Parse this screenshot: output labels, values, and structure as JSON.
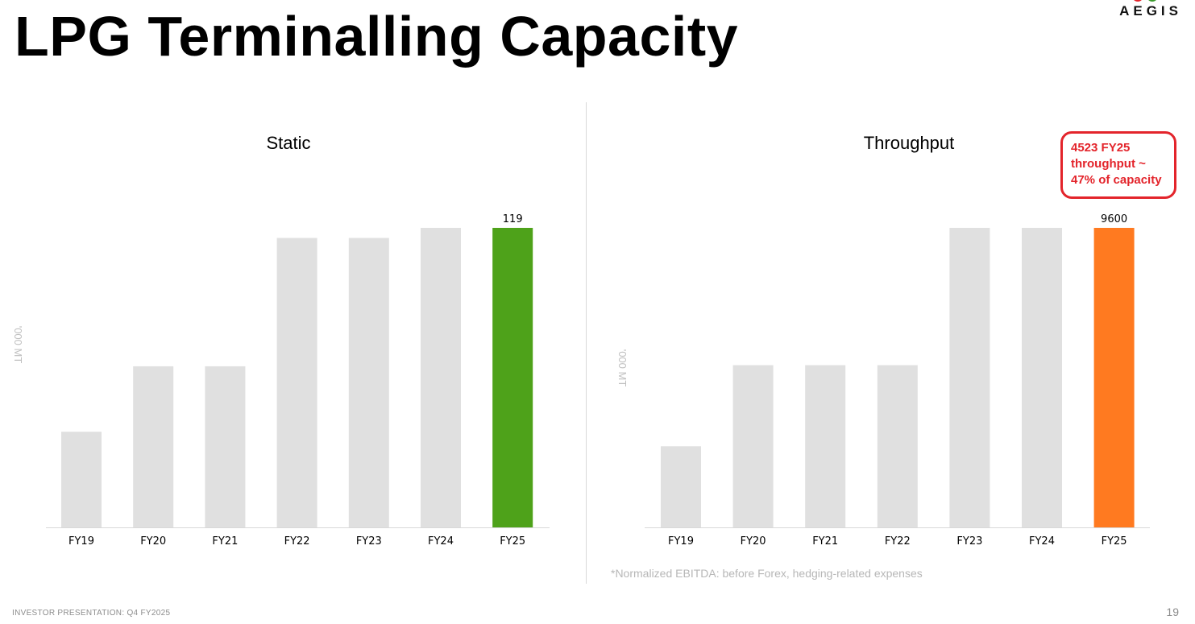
{
  "page": {
    "title": "LPG Terminalling Capacity",
    "logo_text": "AEGIS",
    "footnote": "*Normalized EBITDA: before Forex, hedging-related expenses",
    "footer_text": "INVESTOR PRESENTATION: Q4 FY2025",
    "page_number": "19"
  },
  "colors": {
    "bar_default": "#e0e0e0",
    "static_highlight": "#4ea21a",
    "throughput_highlight": "#ff7a20",
    "callout": "#e3242b",
    "logo_green": "#3a9b2c",
    "logo_red": "#e3242b"
  },
  "callout": {
    "lines": [
      "4523 FY25",
      "throughput ~",
      "47% of capacity"
    ]
  },
  "chart_data": [
    {
      "type": "bar",
      "title": "Static",
      "ylabel": "'000 MT",
      "categories": [
        "FY19",
        "FY20",
        "FY21",
        "FY22",
        "FY23",
        "FY24",
        "FY25"
      ],
      "values": [
        38,
        64,
        64,
        115,
        115,
        119,
        119
      ],
      "data_labels": [
        "",
        "",
        "",
        "",
        "",
        "",
        "119"
      ],
      "highlight_index": 6,
      "ylim": [
        0,
        119
      ],
      "grid": false
    },
    {
      "type": "bar",
      "title": "Throughput",
      "ylabel": "'000 MT",
      "categories": [
        "FY19",
        "FY20",
        "FY21",
        "FY22",
        "FY23",
        "FY24",
        "FY25"
      ],
      "values": [
        2600,
        5200,
        5200,
        5200,
        9600,
        9600,
        9600
      ],
      "data_labels": [
        "",
        "",
        "",
        "",
        "",
        "",
        "9600"
      ],
      "highlight_index": 6,
      "ylim": [
        0,
        9600
      ],
      "grid": false
    }
  ]
}
